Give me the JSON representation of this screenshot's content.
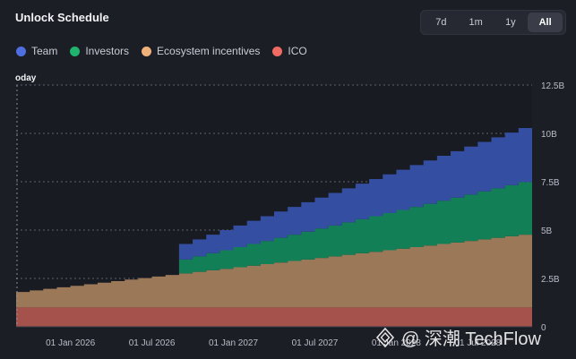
{
  "title": "Unlock Schedule",
  "ranges": [
    "7d",
    "1m",
    "1y",
    "All"
  ],
  "active_range": "All",
  "legend": [
    {
      "label": "Team",
      "color": "#4f6fe0"
    },
    {
      "label": "Investors",
      "color": "#1fb36d"
    },
    {
      "label": "Ecosystem incentives",
      "color": "#f0b27a"
    },
    {
      "label": "ICO",
      "color": "#f06b61"
    }
  ],
  "today_label": "oday",
  "watermark": {
    "text": "@ 深潮 TechFlow"
  },
  "chart_data": {
    "type": "area",
    "stacked": true,
    "x_tick_labels": [
      "01 Jan 2026",
      "01 Jul 2026",
      "01 Jan 2027",
      "01 Jul 2027",
      "01 Jan 2028",
      "01 Jul 2028"
    ],
    "y_tick_labels": [
      "0",
      "2.5B",
      "5B",
      "7.5B",
      "10B",
      "12.5B"
    ],
    "ylim": [
      0,
      12.5
    ],
    "x_range": [
      "2025-09",
      "2028-11"
    ],
    "months": [
      "2025-09",
      "2025-10",
      "2025-11",
      "2025-12",
      "2026-01",
      "2026-02",
      "2026-03",
      "2026-04",
      "2026-05",
      "2026-06",
      "2026-07",
      "2026-08",
      "2026-09",
      "2026-10",
      "2026-11",
      "2026-12",
      "2027-01",
      "2027-02",
      "2027-03",
      "2027-04",
      "2027-05",
      "2027-06",
      "2027-07",
      "2027-08",
      "2027-09",
      "2027-10",
      "2027-11",
      "2027-12",
      "2028-01",
      "2028-02",
      "2028-03",
      "2028-04",
      "2028-05",
      "2028-06",
      "2028-07",
      "2028-08",
      "2028-09",
      "2028-10",
      "2028-11"
    ],
    "series": [
      {
        "name": "ICO",
        "color": "#a5524c",
        "values": [
          1.0,
          1.0,
          1.0,
          1.0,
          1.0,
          1.0,
          1.0,
          1.0,
          1.0,
          1.0,
          1.0,
          1.0,
          1.0,
          1.0,
          1.0,
          1.0,
          1.0,
          1.0,
          1.0,
          1.0,
          1.0,
          1.0,
          1.0,
          1.0,
          1.0,
          1.0,
          1.0,
          1.0,
          1.0,
          1.0,
          1.0,
          1.0,
          1.0,
          1.0,
          1.0,
          1.0,
          1.0,
          1.0,
          1.0
        ]
      },
      {
        "name": "Ecosystem incentives",
        "color": "#9a7858",
        "values": [
          0.8,
          0.88,
          0.96,
          1.04,
          1.12,
          1.2,
          1.28,
          1.36,
          1.44,
          1.52,
          1.6,
          1.68,
          1.76,
          1.84,
          1.92,
          2.0,
          2.08,
          2.16,
          2.24,
          2.32,
          2.4,
          2.48,
          2.56,
          2.64,
          2.72,
          2.8,
          2.88,
          2.96,
          3.04,
          3.12,
          3.2,
          3.28,
          3.36,
          3.44,
          3.52,
          3.6,
          3.68,
          3.76,
          3.84
        ]
      },
      {
        "name": "Investors",
        "color": "#137f57",
        "values": [
          0,
          0,
          0,
          0,
          0,
          0,
          0,
          0,
          0,
          0,
          0,
          0,
          0.72,
          0.8,
          0.88,
          0.96,
          1.04,
          1.12,
          1.2,
          1.28,
          1.36,
          1.44,
          1.52,
          1.6,
          1.68,
          1.76,
          1.84,
          1.92,
          2.0,
          2.08,
          2.16,
          2.24,
          2.32,
          2.4,
          2.48,
          2.56,
          2.64,
          2.72,
          2.8
        ]
      },
      {
        "name": "Team",
        "color": "#344ea1",
        "values": [
          0,
          0,
          0,
          0,
          0,
          0,
          0,
          0,
          0,
          0,
          0,
          0,
          0.8,
          0.88,
          0.96,
          1.04,
          1.12,
          1.2,
          1.28,
          1.36,
          1.44,
          1.52,
          1.6,
          1.68,
          1.76,
          1.84,
          1.92,
          2.0,
          2.08,
          2.16,
          2.24,
          2.32,
          2.4,
          2.48,
          2.56,
          2.64,
          2.72,
          2.8,
          2.88
        ]
      }
    ]
  }
}
